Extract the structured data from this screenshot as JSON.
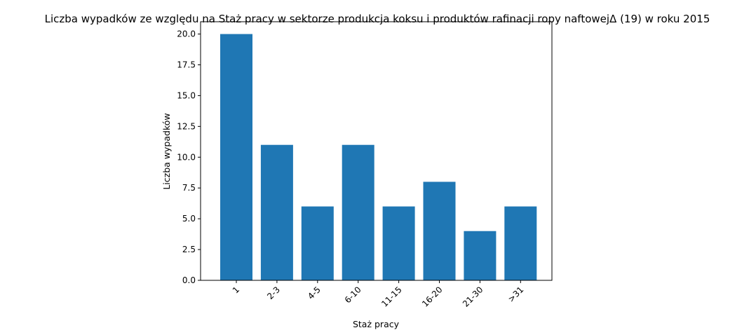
{
  "chart_data": {
    "type": "bar",
    "title": "Liczba wypadków ze względu na Staż pracy w sektorze produkcja koksu i produktów rafinacji ropy naftowejΔ (19) w roku 2015",
    "xlabel": "Staż pracy",
    "ylabel": "Liczba wypadków",
    "categories": [
      "1",
      "2-3",
      "4-5",
      "6-10",
      "11-15",
      "16-20",
      "21-30",
      ">31"
    ],
    "values": [
      20,
      11,
      6,
      11,
      6,
      8,
      4,
      6
    ],
    "ylim": [
      0,
      21
    ],
    "yticks": [
      "0.0",
      "2.5",
      "5.0",
      "7.5",
      "10.0",
      "12.5",
      "15.0",
      "17.5",
      "20.0"
    ],
    "bar_color": "#1f77b4",
    "grid": false
  }
}
